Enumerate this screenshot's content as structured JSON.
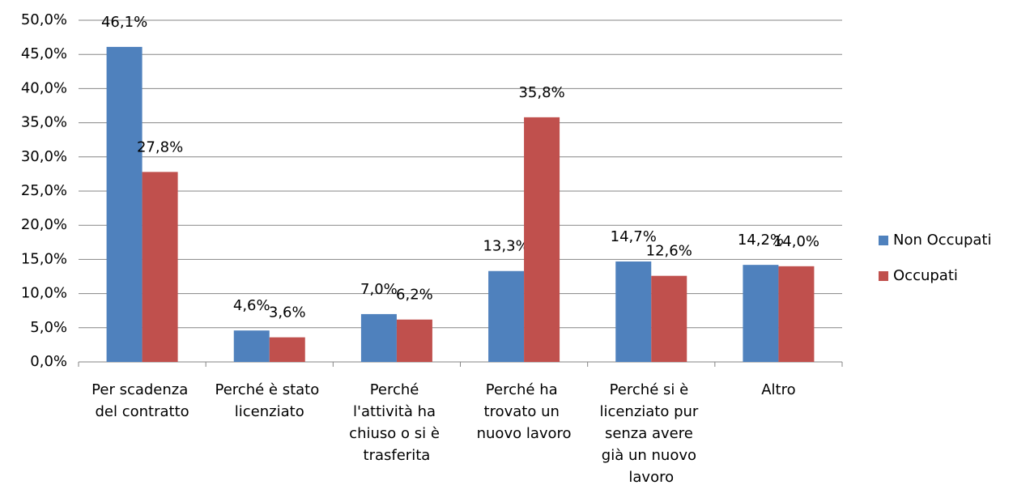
{
  "chart_data": {
    "type": "bar",
    "categories": [
      "Per scadenza\ndel contratto",
      "Perché è stato\nlicenziato",
      "Perché\nl'attività ha\nchiuso o si è\ntrasferita",
      "Perché ha\ntrovato un\nnuovo lavoro",
      "Perché si è\nlicenziato pur\nsenza avere\ngià un nuovo\nlavoro",
      "Altro"
    ],
    "series": [
      {
        "name": "Non Occupati",
        "color": "#4f81bd",
        "values": [
          46.1,
          4.6,
          7.0,
          13.3,
          14.7,
          14.2
        ],
        "value_labels": [
          "46,1%",
          "4,6%",
          "7,0%",
          "13,3%",
          "14,7%",
          "14,2%"
        ]
      },
      {
        "name": "Occupati",
        "color": "#c0504d",
        "values": [
          27.8,
          3.6,
          6.2,
          35.8,
          12.6,
          14.0
        ],
        "value_labels": [
          "27,8%",
          "3,6%",
          "6,2%",
          "35,8%",
          "12,6%",
          "14,0%"
        ]
      }
    ],
    "ylim": [
      0,
      50
    ],
    "yticks": [
      {
        "value": 0,
        "label": "0,0%"
      },
      {
        "value": 5,
        "label": "5,0%"
      },
      {
        "value": 10,
        "label": "10,0%"
      },
      {
        "value": 15,
        "label": "15,0%"
      },
      {
        "value": 20,
        "label": "20,0%"
      },
      {
        "value": 25,
        "label": "25,0%"
      },
      {
        "value": 30,
        "label": "30,0%"
      },
      {
        "value": 35,
        "label": "35,0%"
      },
      {
        "value": 40,
        "label": "40,0%"
      },
      {
        "value": 45,
        "label": "45,0%"
      },
      {
        "value": 50,
        "label": "50,0%"
      }
    ],
    "grid": true,
    "legend": "right"
  }
}
